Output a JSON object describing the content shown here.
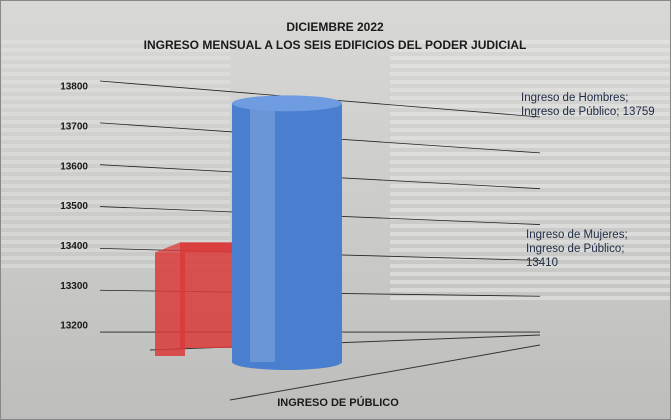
{
  "chart_data": {
    "type": "bar3d",
    "title": "DICIEMBRE 2022",
    "subtitle": "INGRESO MENSUAL A LOS SEIS EDIFICIOS DEL PODER JUDICIAL",
    "categories": [
      "INGRESO DE PÚBLICO"
    ],
    "series": [
      {
        "color": "#4a7fd0",
        "values": [
          13759
        ],
        "value_labels": [
          "Ingreso  de Hombres; Ingreso de Público; 13759"
        ],
        "label_color": "#29abe2"
      },
      {
        "color": "#d93a3a",
        "values": [
          13410
        ],
        "value_labels": [
          "Ingreso de Mujeres; Ingreso de Público; 13410"
        ],
        "label_color": "#e0433d"
      }
    ],
    "ylim": [
      13150,
      13800
    ],
    "yticks": [
      13200,
      13300,
      13400,
      13500,
      13600,
      13700,
      13800
    ],
    "grid": true
  }
}
